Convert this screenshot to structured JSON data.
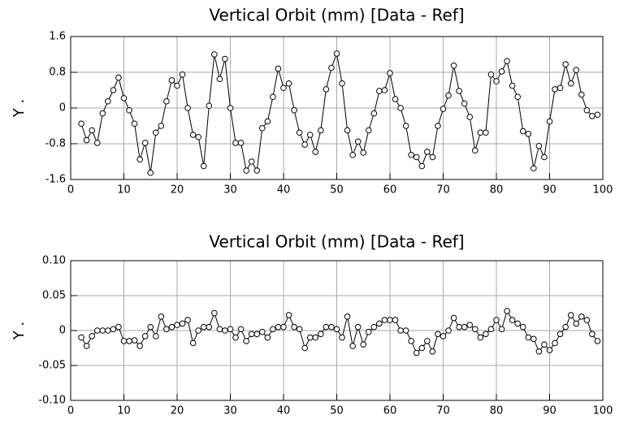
{
  "chart_data": [
    {
      "type": "line",
      "title": "Vertical Orbit (mm) [Data - Ref]",
      "y_label": "Y .",
      "color": "#000000",
      "grid": true,
      "xlim": [
        0,
        100
      ],
      "xticks": [
        0,
        10,
        20,
        30,
        40,
        50,
        60,
        70,
        80,
        90,
        100
      ],
      "ylim": [
        -1.6,
        1.6
      ],
      "yticks": [
        -1.6,
        -0.8,
        0,
        0.8,
        1.6
      ],
      "x": [
        2,
        3,
        4,
        5,
        6,
        7,
        8,
        9,
        10,
        11,
        12,
        13,
        14,
        15,
        16,
        17,
        18,
        19,
        20,
        21,
        22,
        23,
        24,
        25,
        26,
        27,
        28,
        29,
        30,
        31,
        32,
        33,
        34,
        35,
        36,
        37,
        38,
        39,
        40,
        41,
        42,
        43,
        44,
        45,
        46,
        47,
        48,
        49,
        50,
        51,
        52,
        53,
        54,
        55,
        56,
        57,
        58,
        59,
        60,
        61,
        62,
        63,
        64,
        65,
        66,
        67,
        68,
        69,
        70,
        71,
        72,
        73,
        74,
        75,
        76,
        77,
        78,
        79,
        80,
        81,
        82,
        83,
        84,
        85,
        86,
        87,
        88,
        89,
        90,
        91,
        92,
        93,
        94,
        95,
        96,
        97,
        98,
        99
      ],
      "values": [
        -0.35,
        -0.72,
        -0.5,
        -0.78,
        -0.12,
        0.15,
        0.4,
        0.68,
        0.22,
        -0.05,
        -0.35,
        -1.15,
        -0.78,
        -1.45,
        -0.55,
        -0.4,
        0.15,
        0.62,
        0.5,
        0.75,
        0.0,
        -0.6,
        -0.65,
        -1.3,
        0.05,
        1.2,
        0.65,
        1.1,
        0.0,
        -0.78,
        -0.78,
        -1.4,
        -1.2,
        -1.4,
        -0.45,
        -0.3,
        0.25,
        0.88,
        0.45,
        0.55,
        -0.05,
        -0.55,
        -0.82,
        -0.6,
        -0.98,
        -0.5,
        0.42,
        0.9,
        1.22,
        0.55,
        -0.5,
        -1.05,
        -0.75,
        -1.0,
        -0.5,
        -0.12,
        0.38,
        0.4,
        0.78,
        0.2,
        0.0,
        -0.4,
        -1.05,
        -1.1,
        -1.3,
        -0.98,
        -1.1,
        -0.4,
        -0.02,
        0.28,
        0.95,
        0.38,
        0.1,
        -0.2,
        -0.95,
        -0.55,
        -0.55,
        0.75,
        0.6,
        0.82,
        1.05,
        0.5,
        0.25,
        -0.52,
        -0.58,
        -1.35,
        -0.85,
        -1.1,
        -0.3,
        0.42,
        0.45,
        0.98,
        0.55,
        0.85,
        0.3,
        -0.05,
        -0.18,
        -0.15
      ]
    },
    {
      "type": "line",
      "title": "Vertical Orbit (mm) [Data - Ref]",
      "y_label": "Y .",
      "color": "#000000",
      "grid": true,
      "xlim": [
        0,
        100
      ],
      "xticks": [
        0,
        10,
        20,
        30,
        40,
        50,
        60,
        70,
        80,
        90,
        100
      ],
      "ylim": [
        -0.1,
        0.1
      ],
      "yticks": [
        {
          "value": -0.1,
          "label": "-0.10"
        },
        -0.05,
        0,
        0.05,
        {
          "value": 0.1,
          "label": "0.10"
        }
      ],
      "x": [
        2,
        3,
        4,
        5,
        6,
        7,
        8,
        9,
        10,
        11,
        12,
        13,
        14,
        15,
        16,
        17,
        18,
        19,
        20,
        21,
        22,
        23,
        24,
        25,
        26,
        27,
        28,
        29,
        30,
        31,
        32,
        33,
        34,
        35,
        36,
        37,
        38,
        39,
        40,
        41,
        42,
        43,
        44,
        45,
        46,
        47,
        48,
        49,
        50,
        51,
        52,
        53,
        54,
        55,
        56,
        57,
        58,
        59,
        60,
        61,
        62,
        63,
        64,
        65,
        66,
        67,
        68,
        69,
        70,
        71,
        72,
        73,
        74,
        75,
        76,
        77,
        78,
        79,
        80,
        81,
        82,
        83,
        84,
        85,
        86,
        87,
        88,
        89,
        90,
        91,
        92,
        93,
        94,
        95,
        96,
        97,
        98,
        99
      ],
      "values": [
        -0.01,
        -0.022,
        -0.008,
        0.0,
        0.0,
        0.0,
        0.002,
        0.005,
        -0.015,
        -0.015,
        -0.014,
        -0.022,
        -0.008,
        0.005,
        -0.008,
        0.02,
        0.002,
        0.005,
        0.008,
        0.01,
        0.015,
        -0.018,
        0.0,
        0.005,
        0.005,
        0.025,
        0.002,
        0.0,
        0.002,
        -0.01,
        0.002,
        -0.015,
        -0.005,
        -0.005,
        -0.002,
        -0.01,
        0.002,
        0.005,
        0.005,
        0.022,
        0.005,
        0.002,
        -0.025,
        -0.01,
        -0.01,
        -0.005,
        0.005,
        0.005,
        0.002,
        -0.01,
        0.02,
        -0.022,
        0.005,
        -0.02,
        -0.002,
        0.005,
        0.01,
        0.015,
        0.015,
        0.015,
        0.0,
        0.0,
        -0.015,
        -0.032,
        -0.025,
        -0.015,
        -0.03,
        -0.005,
        -0.008,
        0.0,
        0.018,
        0.005,
        0.005,
        0.008,
        0.002,
        -0.01,
        -0.005,
        0.002,
        0.015,
        0.002,
        0.028,
        0.015,
        0.01,
        0.005,
        -0.01,
        -0.012,
        -0.03,
        -0.02,
        -0.028,
        -0.018,
        -0.005,
        0.005,
        0.022,
        0.01,
        0.02,
        0.015,
        -0.005,
        -0.015
      ]
    }
  ]
}
